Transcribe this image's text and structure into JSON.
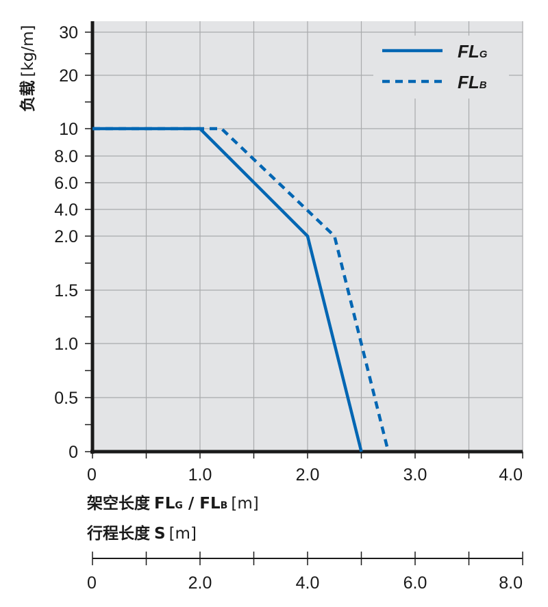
{
  "chart_data": {
    "type": "line",
    "y_axis": {
      "label_main": "负载",
      "label_unit": "[kg/m]",
      "tick_labels": [
        "0",
        "0.5",
        "1.0",
        "1.5",
        "2.0",
        "4.0",
        "6.0",
        "8.0",
        "10",
        "20",
        "30"
      ]
    },
    "x_axis": {
      "label_main": "架空长度",
      "label_fl": "FL",
      "label_sub_g": "G",
      "label_sep": " / ",
      "label_sub_b": "B",
      "label_unit": "[m]",
      "range": [
        0,
        4.0
      ],
      "tick_values": [
        0,
        1.0,
        2.0,
        3.0,
        4.0
      ],
      "tick_labels": [
        "0",
        "1.0",
        "2.0",
        "3.0",
        "4.0"
      ]
    },
    "x_axis_2": {
      "label_main": "行程长度",
      "label_symbol": "S",
      "label_unit": "[m]",
      "tick_labels": [
        "0",
        "2.0",
        "4.0",
        "6.0",
        "8.0"
      ]
    },
    "legend": {
      "position": "top-right"
    },
    "series": [
      {
        "name": "FL",
        "name_sub": "G",
        "style": "solid",
        "color": "#0066b3",
        "x": [
          0,
          1.0,
          2.0,
          2.5
        ],
        "y": [
          "10",
          "10",
          "2.0",
          "0"
        ]
      },
      {
        "name": "FL",
        "name_sub": "B",
        "style": "dotted",
        "color": "#0066b3",
        "x": [
          0,
          1.2,
          2.25,
          2.75
        ],
        "y": [
          "10",
          "10",
          "2.0",
          "0"
        ]
      }
    ]
  }
}
